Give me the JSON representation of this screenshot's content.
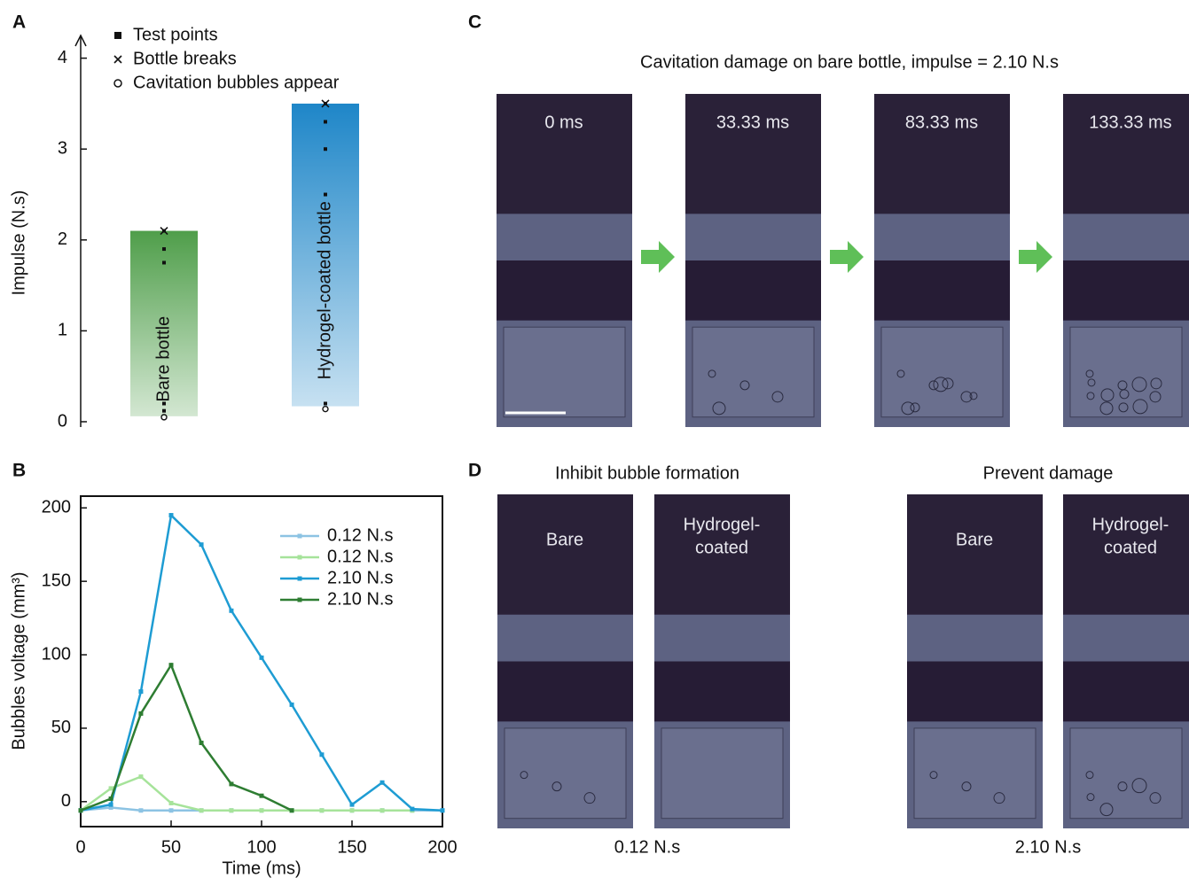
{
  "panel_labels": [
    "A",
    "B",
    "C",
    "D"
  ],
  "chart_data": [
    {
      "type": "range",
      "y_label": "Impulse (N.s)",
      "categories": [
        "Bare bottle",
        "Hydrogel-coated bottle"
      ],
      "low": [
        0.06,
        0.17
      ],
      "high": [
        2.1,
        3.5
      ],
      "bubbles": [
        0.05,
        0.14
      ],
      "breaks": [
        2.1,
        3.5
      ],
      "test_points": [
        [
          0.12,
          0.2,
          1.75,
          1.9,
          2.1
        ],
        [
          0.2,
          2.5,
          3.0,
          3.3,
          3.5
        ]
      ],
      "colors": [
        "#4f9e4a",
        "#1e86c8"
      ],
      "legend": [
        "Test points",
        "Bottle breaks",
        "Cavitation bubbles appear"
      ],
      "ylim": [
        0,
        4.25
      ],
      "yticks": [
        0,
        1,
        2,
        3,
        4
      ]
    },
    {
      "type": "line",
      "x_label": "Time (ms)",
      "y_label": "Bubbles voltage (mm³)",
      "x": [
        0,
        16.7,
        33.3,
        50,
        66.7,
        83.3,
        100,
        116.7,
        133.3,
        150,
        166.7,
        183.3,
        200
      ],
      "series": [
        {
          "name": "0.12 N.s",
          "color": "#8cc3e3",
          "values": [
            -6,
            -4,
            -6,
            -6,
            -6,
            -6,
            -6,
            -6,
            -6,
            -6,
            -6,
            -6,
            -6
          ]
        },
        {
          "name": "0.12 N.s",
          "color": "#a6e39a",
          "values": [
            -6,
            9,
            17,
            -1,
            -6,
            -6,
            -6,
            -6,
            -6,
            -6,
            -6,
            -6,
            null
          ]
        },
        {
          "name": "2.10 N.s",
          "color": "#1e9cd3",
          "values": [
            -6,
            -2,
            75,
            195,
            175,
            130,
            98,
            66,
            32,
            -2,
            13,
            -5,
            -6
          ]
        },
        {
          "name": "2.10 N.s",
          "color": "#2e7d32",
          "values": [
            -6,
            2,
            60,
            93,
            40,
            12,
            4,
            -6,
            null,
            null,
            null,
            null,
            null
          ]
        }
      ],
      "xlim": [
        0,
        200
      ],
      "xticks": [
        0,
        50,
        100,
        150,
        200
      ],
      "ylim": [
        -17,
        208
      ],
      "yticks": [
        0,
        50,
        100,
        150,
        200
      ]
    }
  ],
  "panel_c": {
    "title": "Cavitation damage on bare bottle, impulse = 2.10 N.s",
    "frames": [
      "0 ms",
      "33.33 ms",
      "83.33 ms",
      "133.33 ms"
    ]
  },
  "panel_d": {
    "groups": [
      {
        "title": "Inhibit bubble formation",
        "labels": [
          [
            "Bare"
          ],
          [
            "Hydrogel-",
            "coated"
          ]
        ],
        "caption": "0.12 N.s"
      },
      {
        "title": "Prevent damage",
        "labels": [
          [
            "Bare"
          ],
          [
            "Hydrogel-",
            "coated"
          ]
        ],
        "caption": "2.10 N.s"
      }
    ]
  }
}
